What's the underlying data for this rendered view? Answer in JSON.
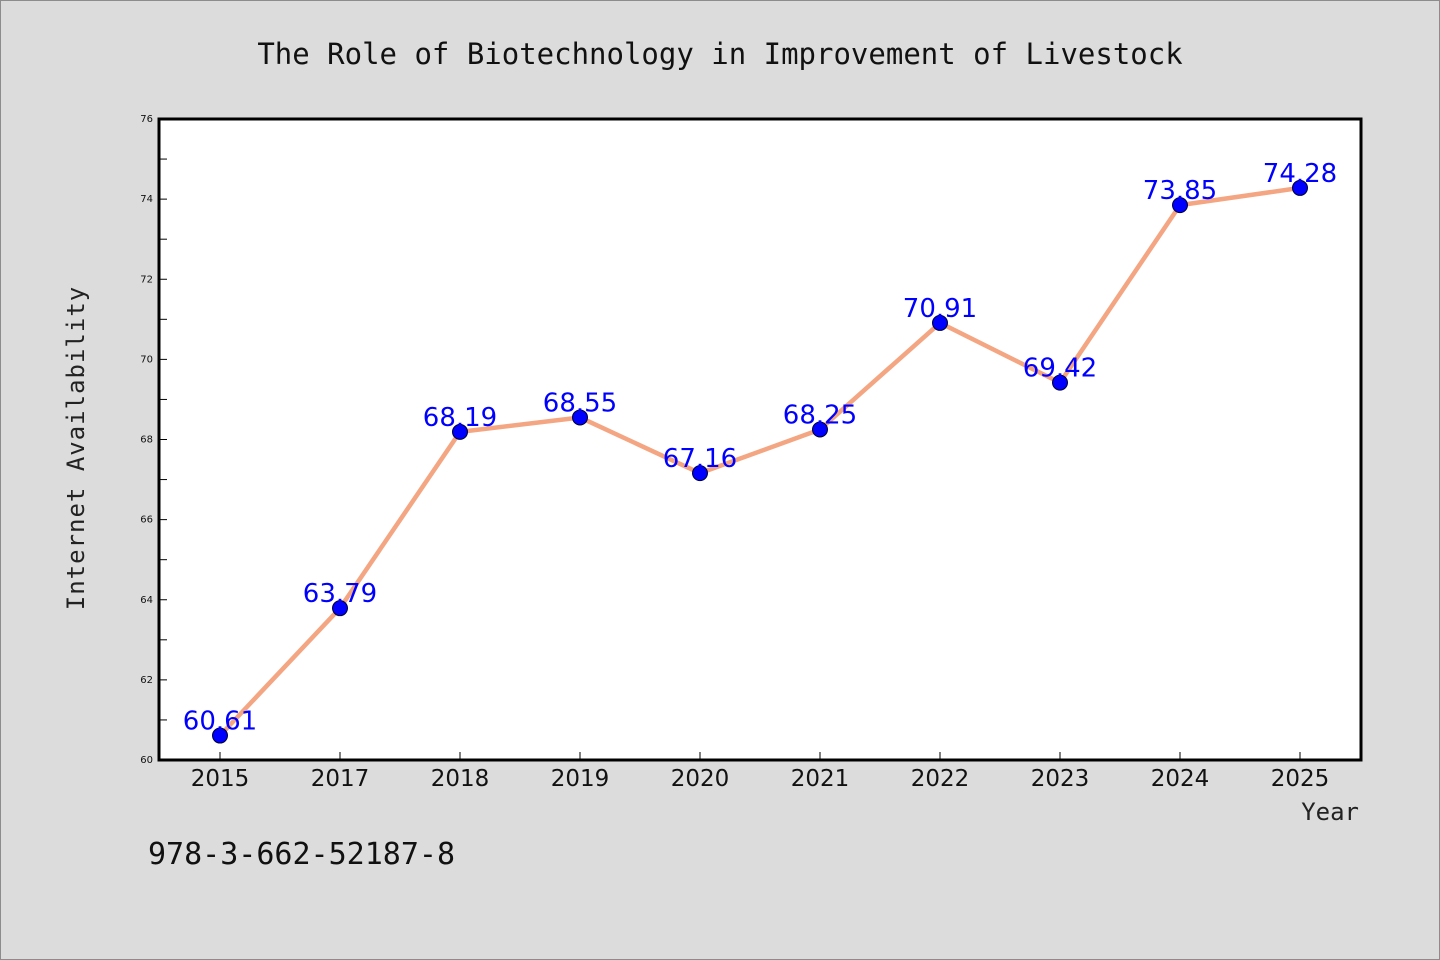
{
  "colors": {
    "background": "#dcdcdc",
    "plot_background": "#ffffff",
    "line": "#f4a582",
    "marker": "#0000ff",
    "data_label": "#0000ff"
  },
  "footer_note": "978-3-662-52187-8",
  "chart_data": {
    "type": "line",
    "title": "The Role of Biotechnology in Improvement of Livestock",
    "xlabel": "Year",
    "ylabel": "Internet Availability",
    "categories": [
      "2015",
      "2017",
      "2018",
      "2019",
      "2020",
      "2021",
      "2022",
      "2023",
      "2024",
      "2025"
    ],
    "series": [
      {
        "values": [
          60.61,
          63.79,
          68.19,
          68.55,
          67.16,
          68.25,
          70.91,
          69.42,
          73.85,
          74.28
        ],
        "data_labels": [
          "60.61",
          "63.79",
          "68.19",
          "68.55",
          "67.16",
          "68.25",
          "70.91",
          "69.42",
          "73.85",
          "74.28"
        ]
      }
    ],
    "ylim": [
      60,
      76
    ],
    "yticks": [
      "60",
      "62",
      "64",
      "66",
      "68",
      "70",
      "72",
      "74",
      "76"
    ],
    "grid": false,
    "legend": "none"
  }
}
